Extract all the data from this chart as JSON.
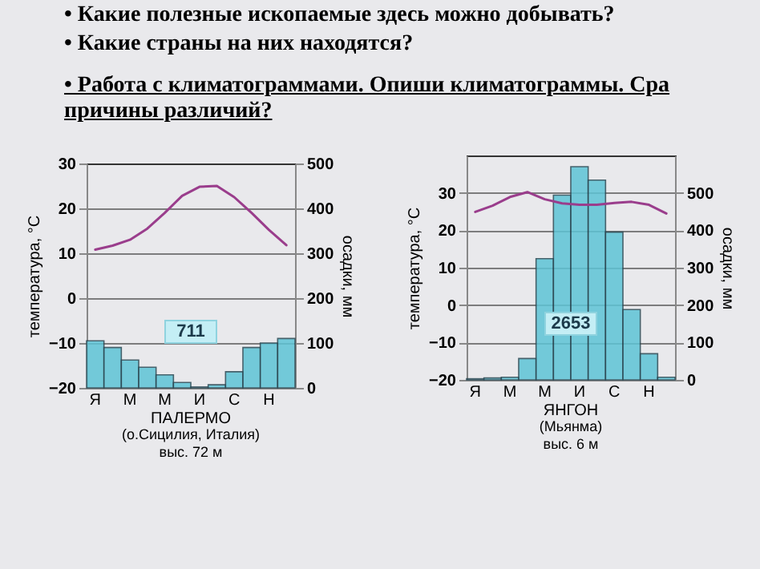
{
  "chart_data": [
    {
      "type": "other",
      "annotations": [
        "• Какие полезные ископаемые здесь можно добывать?",
        "• Какие страны на них находятся?",
        "• Работа с климатограммами. Опиши климатограммы. Сра причины различий?"
      ]
    },
    {
      "type": "bar",
      "title": "ПАЛЕРМО",
      "subtitle": "(о.Сицилия, Италия)",
      "annotations": [
        "711",
        "выс. 72 м"
      ],
      "ylabel": "температура, °С",
      "y2label": "осадки, мм",
      "categories": [
        "Я",
        null,
        "М",
        null,
        "М",
        null,
        "И",
        null,
        "С",
        null,
        "Н",
        null
      ],
      "series": [
        {
          "type": "bar",
          "axis": "y2",
          "color": "#5ec4d6",
          "values": [
            105,
            90,
            62,
            46,
            29,
            12,
            2,
            7,
            36,
            90,
            100,
            110
          ]
        },
        {
          "type": "line",
          "color": "#9a3d8c",
          "values": [
            10.8,
            11.7,
            13,
            15.5,
            19,
            22.8,
            24.8,
            25,
            22.5,
            19,
            15.2,
            11.8
          ]
        }
      ],
      "ylim": [
        -20,
        30
      ],
      "yticks": [
        -20,
        -10,
        0,
        10,
        20,
        30
      ],
      "y2lim": [
        0,
        500
      ],
      "y2ticks": [
        0,
        100,
        200,
        300,
        400,
        500
      ],
      "grid": "y"
    },
    {
      "type": "bar",
      "title": "ЯНГОН",
      "subtitle": "(Мьянма)",
      "annotations": [
        "2653",
        "выс. 6 м"
      ],
      "ylabel": "температура, °С",
      "y2label": "осадки, мм",
      "categories": [
        "Я",
        null,
        "М",
        null,
        "М",
        null,
        "И",
        null,
        "С",
        null,
        "Н",
        null
      ],
      "series": [
        {
          "type": "bar",
          "axis": "y2",
          "color": "#5ec4d6",
          "values": [
            3,
            5,
            7,
            57,
            324,
            494,
            570,
            534,
            395,
            188,
            70,
            7
          ]
        },
        {
          "type": "line",
          "color": "#9a3d8c",
          "values": [
            24.9,
            26.6,
            28.9,
            30.2,
            28.3,
            27.2,
            26.8,
            26.8,
            27.3,
            27.6,
            26.8,
            24.5
          ]
        }
      ],
      "ylim": [
        -20,
        40
      ],
      "yticks": [
        -20,
        -10,
        0,
        10,
        20,
        30
      ],
      "y2lim": [
        0,
        600
      ],
      "y2ticks": [
        0,
        100,
        200,
        300,
        400,
        500
      ],
      "grid": "y"
    }
  ]
}
